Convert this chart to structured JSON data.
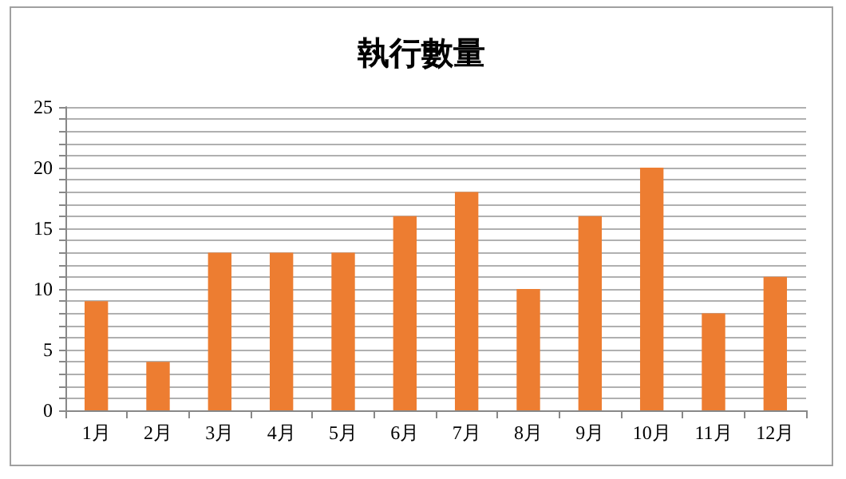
{
  "chart_data": {
    "type": "bar",
    "title": "執行數量",
    "categories": [
      "1月",
      "2月",
      "3月",
      "4月",
      "5月",
      "6月",
      "7月",
      "8月",
      "9月",
      "10月",
      "11月",
      "12月"
    ],
    "values": [
      9,
      4,
      13,
      13,
      13,
      16,
      18,
      10,
      16,
      20,
      8,
      11
    ],
    "color": "#ed7d31",
    "ylim": [
      0,
      25
    ],
    "yticks": [
      0,
      {
        "value": 1,
        "label": null
      },
      {
        "value": 2,
        "label": null
      },
      {
        "value": 3,
        "label": null
      },
      {
        "value": 4,
        "label": null
      },
      5,
      {
        "value": 6,
        "label": null
      },
      {
        "value": 7,
        "label": null
      },
      {
        "value": 8,
        "label": null
      },
      {
        "value": 9,
        "label": null
      },
      10,
      {
        "value": 11,
        "label": null
      },
      {
        "value": 12,
        "label": null
      },
      {
        "value": 13,
        "label": null
      },
      {
        "value": 14,
        "label": null
      },
      15,
      {
        "value": 16,
        "label": null
      },
      {
        "value": 17,
        "label": null
      },
      {
        "value": 18,
        "label": null
      },
      {
        "value": 19,
        "label": null
      },
      20,
      {
        "value": 21,
        "label": null
      },
      {
        "value": 22,
        "label": null
      },
      {
        "value": 23,
        "label": null
      },
      {
        "value": 24,
        "label": null
      },
      25
    ],
    "grid": "y"
  }
}
